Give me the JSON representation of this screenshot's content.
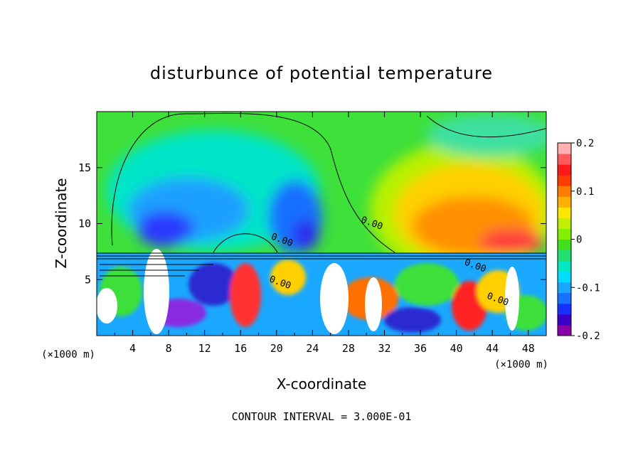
{
  "chart_data": {
    "type": "heatmap",
    "title": "disturbunce of potential temperature",
    "xlabel": "X-coordinate",
    "ylabel": "Z-coordinate",
    "x_unit": "(×1000 m)",
    "z_unit": "(×1000 m)",
    "xlim": [
      0,
      50
    ],
    "ylim": [
      0,
      20
    ],
    "x_ticks": [
      "4",
      "8",
      "12",
      "16",
      "20",
      "24",
      "28",
      "32",
      "36",
      "40",
      "44",
      "48"
    ],
    "y_ticks": [
      "5",
      "10",
      "15"
    ],
    "colorbar": {
      "range": [
        -0.2,
        0.2
      ],
      "tick_labels": [
        "0.2",
        "0.1",
        "0",
        "-0.1",
        "-0.2"
      ],
      "tick_values": [
        0.2,
        0.1,
        0,
        -0.1,
        -0.2
      ]
    },
    "contour_labels": [
      {
        "text": "0.00",
        "x": 30.5,
        "z": 9.8
      },
      {
        "text": "0.00",
        "x": 20.5,
        "z": 8.3
      },
      {
        "text": "0.00",
        "x": 42.0,
        "z": 6.0
      },
      {
        "text": "0.00",
        "x": 20.3,
        "z": 4.5
      },
      {
        "text": "0.00",
        "x": 44.5,
        "z": 3.0
      }
    ],
    "footer": "CONTOUR INTERVAL = 3.000E-01",
    "grid": false
  }
}
